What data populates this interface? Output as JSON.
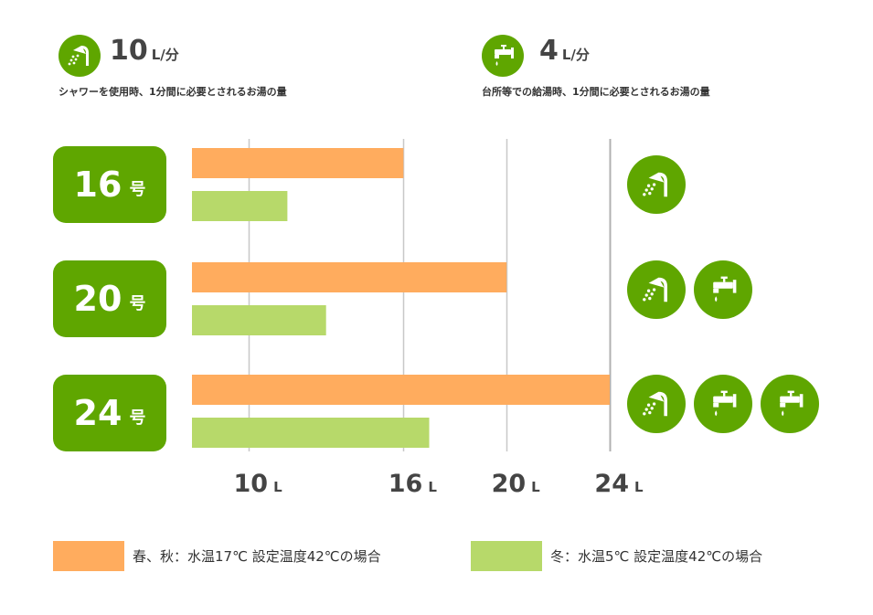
{
  "header": {
    "shower": {
      "value": "10",
      "unit": "L/分",
      "desc": "シャワーを使用時、1分間に必要とされるお湯の量",
      "icon": "shower-icon"
    },
    "kitchen": {
      "value": "4",
      "unit": "L/分",
      "desc": "台所等での給湯時、1分間に必要とされるお湯の量",
      "icon": "faucet-icon"
    }
  },
  "badges": [
    {
      "num": "16",
      "suffix": "号"
    },
    {
      "num": "20",
      "suffix": "号"
    },
    {
      "num": "24",
      "suffix": "号"
    }
  ],
  "colors": {
    "spring_autumn": "#ffac5e",
    "winter": "#b7d96a",
    "green": "#5fa600",
    "gridline": "#c8c8c8"
  },
  "chart_data": {
    "type": "bar",
    "orientation": "horizontal",
    "categories": [
      "16号",
      "20号",
      "24号"
    ],
    "series": [
      {
        "name": "春、秋：水温17℃ 設定温度42℃の場合",
        "values": [
          16,
          20,
          24
        ],
        "color": "#ffac5e"
      },
      {
        "name": "冬：水温5℃ 設定温度42℃の場合",
        "values": [
          11.5,
          13,
          17
        ],
        "color": "#b7d96a"
      }
    ],
    "xticks": [
      {
        "value": 10,
        "num": "10",
        "unit": "L"
      },
      {
        "value": 16,
        "num": "16",
        "unit": "L"
      },
      {
        "value": 20,
        "num": "20",
        "unit": "L"
      },
      {
        "value": 24,
        "num": "24",
        "unit": "L"
      }
    ],
    "xlim": [
      7.8,
      24
    ],
    "usage_icons": [
      [
        "shower-icon"
      ],
      [
        "shower-icon",
        "faucet-icon"
      ],
      [
        "shower-icon",
        "faucet-icon",
        "faucet-icon"
      ]
    ]
  }
}
